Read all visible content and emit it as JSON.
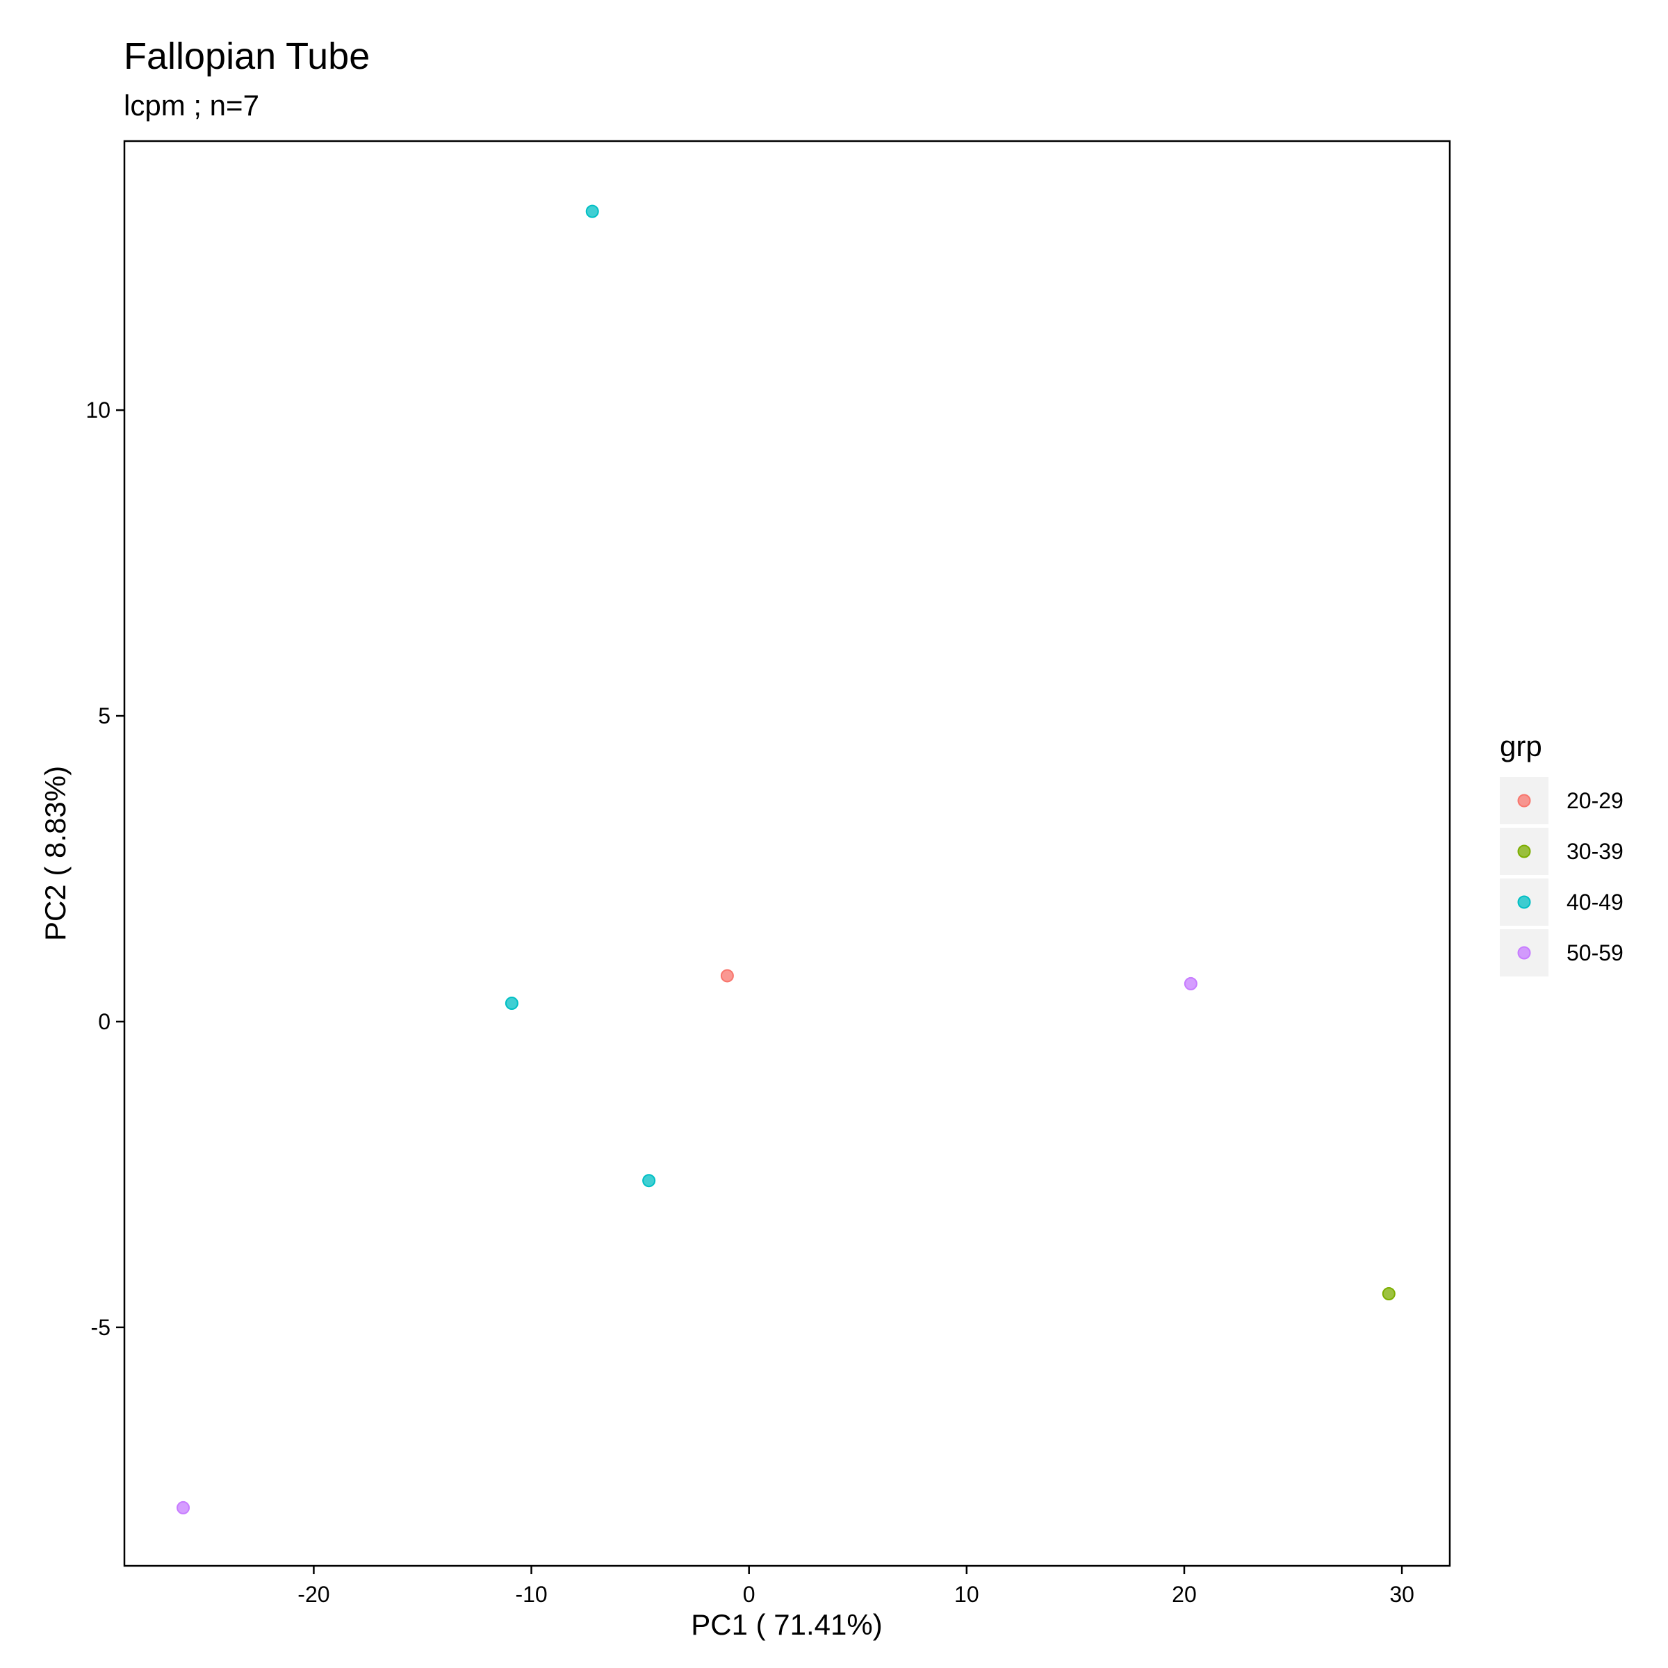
{
  "chart_data": {
    "type": "scatter",
    "title": "Fallopian Tube",
    "subtitle": "lcpm ; n=7",
    "xlabel": "PC1 ( 71.41%)",
    "ylabel": "PC2 ( 8.83%)",
    "xlim": [
      -28.7,
      32.2
    ],
    "ylim": [
      -8.9,
      14.4
    ],
    "xticks": [
      -20,
      -10,
      0,
      10,
      20,
      30
    ],
    "xtick_labels": [
      "-20",
      "-10",
      "0",
      "10",
      "20",
      "30"
    ],
    "yticks": [
      -5,
      0,
      5,
      10
    ],
    "ytick_labels": [
      "-5",
      "0",
      "5",
      "10"
    ],
    "legend": {
      "title": "grp",
      "position": "right"
    },
    "series": [
      {
        "name": "20-29",
        "color": "#F8766D",
        "points": [
          {
            "x": -1.0,
            "y": 0.75
          }
        ]
      },
      {
        "name": "30-39",
        "color": "#7CAE00",
        "points": [
          {
            "x": 29.4,
            "y": -4.45
          }
        ]
      },
      {
        "name": "40-49",
        "color": "#00BFC4",
        "points": [
          {
            "x": -7.2,
            "y": 13.25
          },
          {
            "x": -10.9,
            "y": 0.3
          },
          {
            "x": -4.6,
            "y": -2.6
          }
        ]
      },
      {
        "name": "50-59",
        "color": "#C77CFF",
        "points": [
          {
            "x": 20.3,
            "y": 0.62
          },
          {
            "x": -26.0,
            "y": -7.95
          }
        ]
      }
    ]
  }
}
